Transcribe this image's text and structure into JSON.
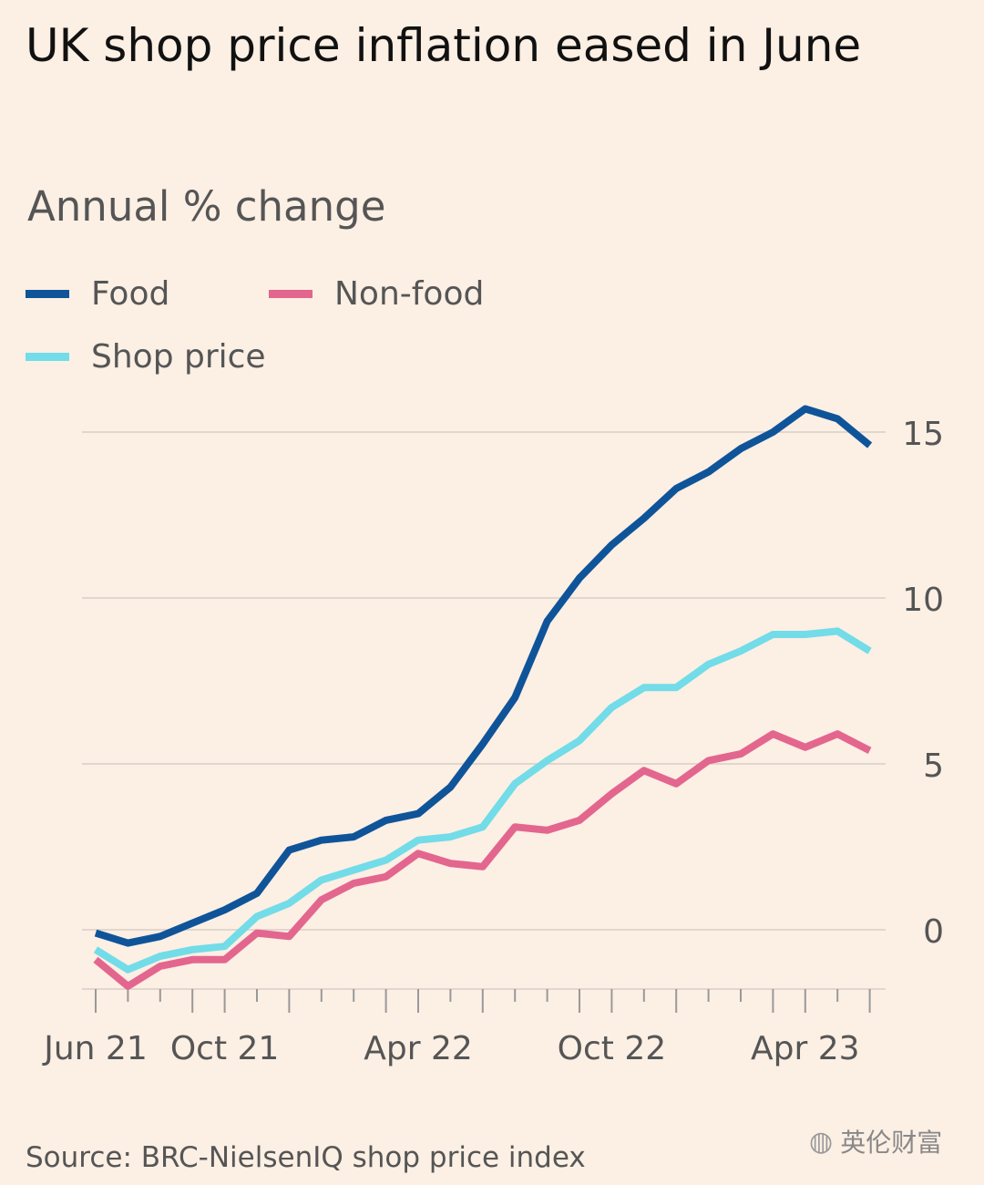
{
  "title": "UK shop price inflation eased in June",
  "subtitle": "Annual % change",
  "source": "Source: BRC-NielsenIQ shop price index",
  "watermark": {
    "text": "英伦财富",
    "icon": "wechat-icon"
  },
  "colors": {
    "background": "#fcefe4",
    "food": "#0f5499",
    "nonfood": "#e3668e",
    "shop": "#72dce8",
    "grid": "#d8cfc6",
    "axis": "#555555"
  },
  "legend": [
    {
      "label": "Food",
      "color": "#0f5499"
    },
    {
      "label": "Non-food",
      "color": "#e3668e"
    },
    {
      "label": "Shop price",
      "color": "#72dce8"
    }
  ],
  "chart_data": {
    "type": "line",
    "title": "UK shop price inflation eased in June",
    "subtitle": "Annual % change",
    "xlabel": "",
    "ylabel": "Annual % change",
    "x": [
      "Jun 21",
      "Jul 21",
      "Aug 21",
      "Sep 21",
      "Oct 21",
      "Nov 21",
      "Dec 21",
      "Jan 22",
      "Feb 22",
      "Mar 22",
      "Apr 22",
      "May 22",
      "Jun 22",
      "Jul 22",
      "Aug 22",
      "Sep 22",
      "Oct 22",
      "Nov 22",
      "Dec 22",
      "Jan 23",
      "Feb 23",
      "Mar 23",
      "Apr 23",
      "May 23",
      "Jun 23"
    ],
    "x_tick_labels": [
      {
        "at": "Jun 21",
        "label": "Jun 21"
      },
      {
        "at": "Oct 21",
        "label": "Oct 21"
      },
      {
        "at": "Apr 22",
        "label": "Apr 22"
      },
      {
        "at": "Oct 22",
        "label": "Oct 22"
      },
      {
        "at": "Apr 23",
        "label": "Apr 23"
      }
    ],
    "y_ticks": [
      0,
      5,
      10,
      15
    ],
    "ylim": [
      -1.8,
      16
    ],
    "y_axis_position": "right",
    "grid": true,
    "series": [
      {
        "name": "Food",
        "color": "#0f5499",
        "values": [
          -0.1,
          -0.4,
          -0.2,
          0.2,
          0.6,
          1.1,
          2.4,
          2.7,
          2.8,
          3.3,
          3.5,
          4.3,
          5.6,
          7.0,
          9.3,
          10.6,
          11.6,
          12.4,
          13.3,
          13.8,
          14.5,
          15.0,
          15.7,
          15.4,
          14.6
        ]
      },
      {
        "name": "Non-food",
        "color": "#e3668e",
        "values": [
          -0.9,
          -1.7,
          -1.1,
          -0.9,
          -0.9,
          -0.1,
          -0.2,
          0.9,
          1.4,
          1.6,
          2.3,
          2.0,
          1.9,
          3.1,
          3.0,
          3.3,
          4.1,
          4.8,
          4.4,
          5.1,
          5.3,
          5.9,
          5.5,
          5.9,
          5.4
        ]
      },
      {
        "name": "Shop price",
        "color": "#72dce8",
        "values": [
          -0.6,
          -1.2,
          -0.8,
          -0.6,
          -0.5,
          0.4,
          0.8,
          1.5,
          1.8,
          2.1,
          2.7,
          2.8,
          3.1,
          4.4,
          5.1,
          5.7,
          6.7,
          7.3,
          7.3,
          8.0,
          8.4,
          8.9,
          8.9,
          9.0,
          8.4
        ]
      }
    ]
  }
}
